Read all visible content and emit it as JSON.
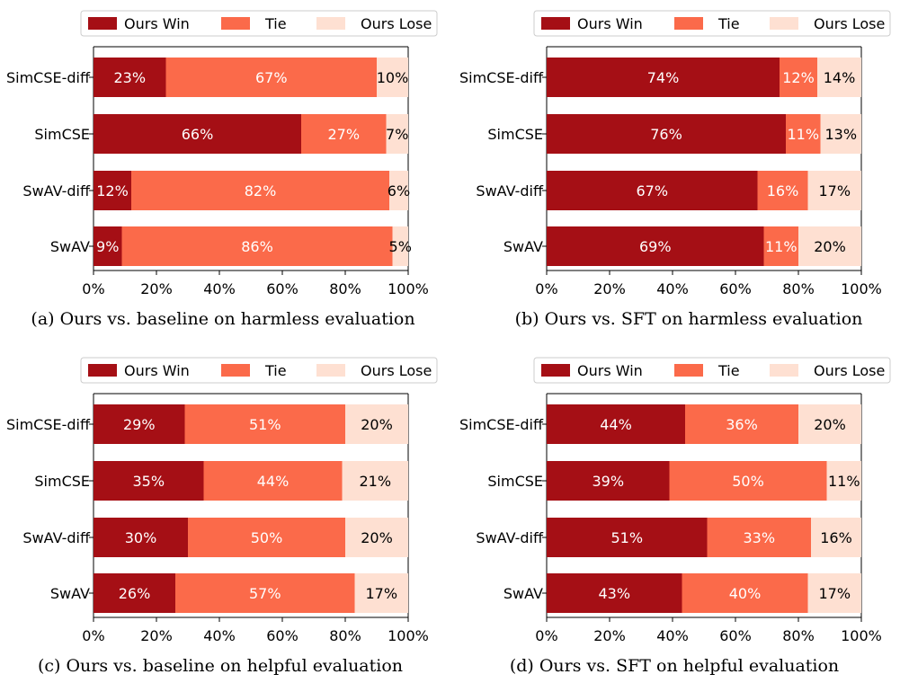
{
  "colors": {
    "win": "#a50f15",
    "tie": "#fb6a4a",
    "lose": "#fee0d2",
    "axis": "#000000",
    "legend_border": "#cccccc"
  },
  "chart_data": [
    {
      "type": "bar",
      "orientation": "horizontal",
      "stacked": true,
      "title": "(a) Ours vs. baseline on harmless evaluation",
      "categories": [
        "SimCSE-diff",
        "SimCSE",
        "SwAV-diff",
        "SwAV"
      ],
      "series": [
        {
          "name": "Ours Win",
          "values": [
            23,
            66,
            12,
            9
          ]
        },
        {
          "name": "Tie",
          "values": [
            67,
            27,
            82,
            86
          ]
        },
        {
          "name": "Ours Lose",
          "values": [
            10,
            7,
            6,
            5
          ]
        }
      ],
      "xlim": [
        0,
        100
      ],
      "xticks": [
        "0%",
        "20%",
        "40%",
        "60%",
        "80%",
        "100%"
      ],
      "legend": "top"
    },
    {
      "type": "bar",
      "orientation": "horizontal",
      "stacked": true,
      "title": "(b) Ours vs. SFT on harmless evaluation",
      "categories": [
        "SimCSE-diff",
        "SimCSE",
        "SwAV-diff",
        "SwAV"
      ],
      "series": [
        {
          "name": "Ours Win",
          "values": [
            74,
            76,
            67,
            69
          ]
        },
        {
          "name": "Tie",
          "values": [
            12,
            11,
            16,
            11
          ]
        },
        {
          "name": "Ours Lose",
          "values": [
            14,
            13,
            17,
            20
          ]
        }
      ],
      "xlim": [
        0,
        100
      ],
      "xticks": [
        "0%",
        "20%",
        "40%",
        "60%",
        "80%",
        "100%"
      ],
      "legend": "top"
    },
    {
      "type": "bar",
      "orientation": "horizontal",
      "stacked": true,
      "title": "(c) Ours vs. baseline on helpful evaluation",
      "categories": [
        "SimCSE-diff",
        "SimCSE",
        "SwAV-diff",
        "SwAV"
      ],
      "series": [
        {
          "name": "Ours Win",
          "values": [
            29,
            35,
            30,
            26
          ]
        },
        {
          "name": "Tie",
          "values": [
            51,
            44,
            50,
            57
          ]
        },
        {
          "name": "Ours Lose",
          "values": [
            20,
            21,
            20,
            17
          ]
        }
      ],
      "xlim": [
        0,
        100
      ],
      "xticks": [
        "0%",
        "20%",
        "40%",
        "60%",
        "80%",
        "100%"
      ],
      "legend": "top"
    },
    {
      "type": "bar",
      "orientation": "horizontal",
      "stacked": true,
      "title": "(d) Ours vs. SFT on helpful evaluation",
      "categories": [
        "SimCSE-diff",
        "SimCSE",
        "SwAV-diff",
        "SwAV"
      ],
      "series": [
        {
          "name": "Ours Win",
          "values": [
            44,
            39,
            51,
            43
          ]
        },
        {
          "name": "Tie",
          "values": [
            36,
            50,
            33,
            40
          ]
        },
        {
          "name": "Ours Lose",
          "values": [
            20,
            11,
            16,
            17
          ]
        }
      ],
      "xlim": [
        0,
        100
      ],
      "xticks": [
        "0%",
        "20%",
        "40%",
        "60%",
        "80%",
        "100%"
      ],
      "legend": "top"
    }
  ]
}
